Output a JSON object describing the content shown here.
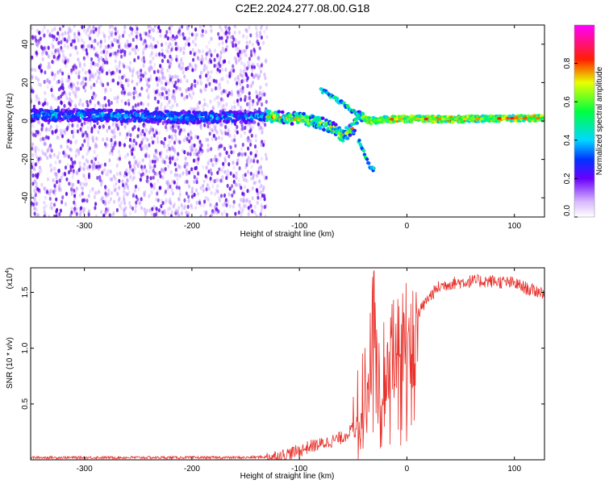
{
  "title": "C2E2.2024.277.08.00.G18",
  "colors": {
    "signal_line": "#e8302a",
    "weak_scatter": "#a66bff",
    "strong_scatter": "#5b00e0",
    "axes": "#000000"
  },
  "chart_data": [
    {
      "type": "heatmap",
      "name": "spectrogram",
      "xlabel": "Height of straight line (km)",
      "ylabel": "Frequency (Hz)",
      "xlim": [
        -350,
        128
      ],
      "ylim": [
        -50,
        50
      ],
      "xticks": [
        -300,
        -200,
        -100,
        0,
        100
      ],
      "yticks": [
        -40,
        -20,
        0,
        20,
        40
      ],
      "tick_labels_x": [
        "-300",
        "-200",
        "-100",
        "0",
        "100"
      ],
      "tick_labels_y": [
        "-40",
        "-20",
        "0",
        "20",
        "40"
      ],
      "colorbar": {
        "label": "Normalized spectral amplitude",
        "range": [
          0,
          1
        ],
        "ticks": [
          0.0,
          0.2,
          0.4,
          0.6,
          0.8
        ],
        "tick_labels": [
          "0.0",
          "0.2",
          "0.4",
          "0.6",
          "0.8"
        ],
        "colormap": "rainbow (white-violet-blue-cyan-green-yellow-red-magenta)"
      },
      "features": {
        "noise_region_x": [
          -350,
          -130
        ],
        "ridge": {
          "x": [
            -350,
            -300,
            -250,
            -200,
            -150,
            -130,
            -110,
            -95,
            -80,
            -70,
            -60,
            -50,
            -45,
            -40,
            -35,
            -25,
            -10,
            0,
            25,
            50,
            75,
            100,
            128
          ],
          "y": [
            3,
            3,
            2.5,
            2,
            2,
            2.5,
            1.5,
            1,
            -1,
            -3,
            -8,
            -4,
            2,
            2,
            0,
            0.5,
            1,
            1.2,
            1,
            1,
            1.2,
            1.5,
            1.5
          ]
        },
        "upper_branch": {
          "x": [
            -80,
            -70,
            -60,
            -50,
            -45
          ],
          "y": [
            16,
            13,
            9,
            5,
            3
          ]
        },
        "lower_branch": {
          "x": [
            -45,
            -42,
            -38,
            -35,
            -30
          ],
          "y": [
            -10,
            -14,
            -19,
            -23,
            -26
          ]
        }
      }
    },
    {
      "type": "line",
      "name": "snr",
      "xlabel": "Height of straight line (km)",
      "ylabel": "SNR (10 * v/v)",
      "scale_note_base": "(x10",
      "scale_note_exp": "4",
      "scale_note_close": ")",
      "xlim": [
        -350,
        128
      ],
      "ylim": [
        0,
        1.72
      ],
      "xticks": [
        -300,
        -200,
        -100,
        0,
        100
      ],
      "yticks": [
        0.5,
        1.0,
        1.5
      ],
      "tick_labels_x": [
        "-300",
        "-200",
        "-100",
        "0",
        "100"
      ],
      "tick_labels_y": [
        "0.5",
        "1.0",
        "1.5"
      ],
      "series": [
        {
          "x": [
            -350,
            -300,
            -250,
            -200,
            -150,
            -120,
            -100,
            -90,
            -80,
            -70,
            -60,
            -50,
            -45,
            -40,
            -35,
            -31,
            -28,
            -25,
            -20,
            -15,
            -10,
            -5,
            0,
            10,
            20,
            30,
            40,
            60,
            80,
            100,
            115,
            128
          ],
          "y": [
            0.02,
            0.02,
            0.02,
            0.02,
            0.02,
            0.03,
            0.08,
            0.12,
            0.14,
            0.17,
            0.2,
            0.28,
            0.4,
            0.55,
            0.75,
            1.35,
            0.9,
            0.8,
            0.95,
            1.0,
            1.02,
            1.1,
            1.2,
            1.3,
            1.45,
            1.55,
            1.58,
            1.6,
            1.6,
            1.58,
            1.52,
            1.5
          ]
        }
      ]
    }
  ]
}
